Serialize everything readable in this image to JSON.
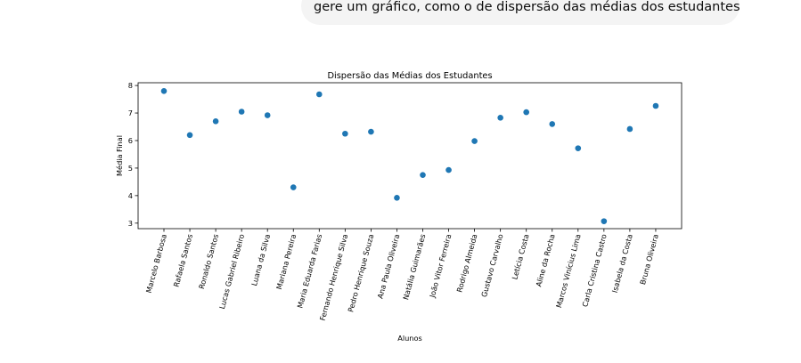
{
  "chat": {
    "message": "gere um gráfico, como o de dispersão das médias dos estudantes"
  },
  "chart_data": {
    "type": "scatter",
    "title": "Dispersão das Médias dos Estudantes",
    "xlabel": "Alunos",
    "ylabel": "Média Final",
    "ylim": [
      2.8,
      8.1
    ],
    "yticks": [
      "3",
      "4",
      "5",
      "6",
      "7",
      "8"
    ],
    "grid": false,
    "color": "#1f77b4",
    "categories": [
      "Marcelo Barbosa",
      "Rafaela Santos",
      "Ronaldo Santos",
      "Lucas Gabriel Ribeiro",
      "Luana da Silva",
      "Mariana Pereira",
      "Maria Eduarda Farias",
      "Fernando Henrique Silva",
      "Pedro Henrique Souza",
      "Ana Paula Oliveira",
      "Natália Guimarães",
      "João Vitor Ferreira",
      "Rodrigo Almeida",
      "Gustavo Carvalho",
      "Letícia Costa",
      "Aline da Rocha",
      "Marcos Vinícius Lima",
      "Carla Cristina Castro",
      "Isabela da Costa",
      "Bruna Oliveira"
    ],
    "values": [
      7.8,
      6.2,
      6.7,
      7.05,
      6.92,
      4.3,
      7.68,
      6.25,
      6.32,
      3.92,
      4.75,
      4.93,
      5.98,
      6.83,
      7.03,
      6.6,
      5.72,
      3.07,
      6.42,
      7.26
    ]
  }
}
